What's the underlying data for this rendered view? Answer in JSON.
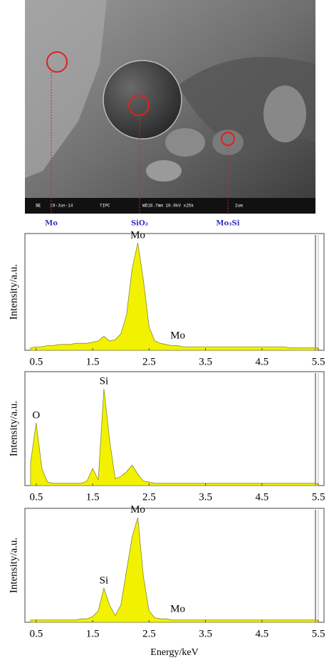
{
  "image": {
    "labels": [
      "Mo",
      "SiO₂",
      "Mo₃Si"
    ],
    "info": [
      "SE",
      "19-Jun-14",
      "TIPC",
      "WD18.7mm 10.0kV x25k",
      "2um"
    ]
  },
  "chart_data": [
    {
      "type": "area",
      "ylabel": "Intensity/a.u.",
      "color": "#f2f200",
      "x": [
        0.4,
        0.5,
        0.6,
        0.7,
        0.8,
        0.9,
        1.0,
        1.1,
        1.2,
        1.3,
        1.4,
        1.5,
        1.6,
        1.7,
        1.8,
        1.9,
        2.0,
        2.1,
        2.2,
        2.3,
        2.4,
        2.5,
        2.6,
        2.7,
        2.8,
        2.9,
        3.0,
        3.1,
        3.2,
        3.3,
        3.4,
        3.5,
        3.6,
        3.7,
        3.8,
        3.9,
        4.0,
        4.1,
        4.2,
        4.3,
        4.4,
        4.5,
        4.6,
        4.7,
        4.8,
        4.9,
        5.0,
        5.1,
        5.2,
        5.3,
        5.4,
        5.5
      ],
      "values": [
        2,
        3,
        3,
        4,
        4,
        5,
        5,
        5,
        6,
        6,
        6,
        7,
        8,
        12,
        8,
        9,
        14,
        30,
        70,
        92,
        60,
        20,
        8,
        6,
        5,
        4,
        4,
        3,
        3,
        3,
        3,
        3,
        3,
        3,
        3,
        3,
        3,
        3,
        3,
        3,
        3,
        3,
        3,
        3,
        3,
        3,
        2,
        2,
        2,
        2,
        2,
        2
      ],
      "annotations": [
        {
          "text": "Mo",
          "x": 2.3,
          "y": 92
        },
        {
          "text": "Mo",
          "x": 2.75,
          "y": 6
        }
      ],
      "xlim": [
        0.3,
        5.6
      ],
      "ylim": [
        0,
        100
      ],
      "xticks": [
        0.5,
        1.5,
        2.5,
        3.5,
        4.5,
        5.5
      ]
    },
    {
      "type": "area",
      "ylabel": "Intensity/a.u.",
      "color": "#f2f200",
      "x": [
        0.4,
        0.5,
        0.6,
        0.7,
        0.8,
        0.9,
        1.0,
        1.1,
        1.2,
        1.3,
        1.4,
        1.5,
        1.6,
        1.7,
        1.8,
        1.9,
        2.0,
        2.1,
        2.2,
        2.3,
        2.4,
        2.5,
        2.6,
        2.7,
        2.8,
        2.9,
        3.0,
        3.1,
        3.2,
        3.3,
        3.4,
        3.5,
        3.6,
        3.7,
        3.8,
        3.9,
        4.0,
        4.1,
        4.2,
        4.3,
        4.4,
        4.5,
        4.6,
        4.7,
        4.8,
        4.9,
        5.0,
        5.1,
        5.2,
        5.3,
        5.4,
        5.5
      ],
      "values": [
        20,
        55,
        15,
        3,
        2,
        2,
        2,
        2,
        2,
        2,
        4,
        15,
        5,
        85,
        40,
        6,
        8,
        12,
        18,
        10,
        4,
        3,
        2,
        2,
        2,
        2,
        2,
        2,
        2,
        2,
        2,
        2,
        2,
        2,
        2,
        2,
        2,
        2,
        2,
        2,
        2,
        2,
        2,
        2,
        2,
        2,
        2,
        2,
        2,
        2,
        2,
        2
      ],
      "annotations": [
        {
          "text": "O",
          "x": 0.5,
          "y": 55
        },
        {
          "text": "Si",
          "x": 1.7,
          "y": 85
        }
      ],
      "xlim": [
        0.3,
        5.6
      ],
      "ylim": [
        0,
        100
      ],
      "xticks": [
        0.5,
        1.5,
        2.5,
        3.5,
        4.5,
        5.5
      ]
    },
    {
      "type": "area",
      "ylabel": "Intensity/a.u.",
      "xlabel": "Energy/keV",
      "color": "#f2f200",
      "x": [
        0.4,
        0.5,
        0.6,
        0.7,
        0.8,
        0.9,
        1.0,
        1.1,
        1.2,
        1.3,
        1.4,
        1.5,
        1.6,
        1.7,
        1.8,
        1.9,
        2.0,
        2.1,
        2.2,
        2.3,
        2.4,
        2.5,
        2.6,
        2.7,
        2.8,
        2.9,
        3.0,
        3.1,
        3.2,
        3.3,
        3.4,
        3.5,
        3.6,
        3.7,
        3.8,
        3.9,
        4.0,
        4.1,
        4.2,
        4.3,
        4.4,
        4.5,
        4.6,
        4.7,
        4.8,
        4.9,
        5.0,
        5.1,
        5.2,
        5.3,
        5.4,
        5.5
      ],
      "values": [
        2,
        2,
        2,
        2,
        2,
        2,
        2,
        2,
        2,
        3,
        3,
        5,
        10,
        30,
        15,
        6,
        15,
        45,
        75,
        92,
        40,
        10,
        4,
        3,
        3,
        2,
        2,
        2,
        2,
        2,
        2,
        2,
        2,
        2,
        2,
        2,
        2,
        2,
        2,
        2,
        2,
        2,
        2,
        2,
        2,
        2,
        2,
        2,
        2,
        2,
        2,
        2
      ],
      "annotations": [
        {
          "text": "Mo",
          "x": 2.3,
          "y": 92
        },
        {
          "text": "Si",
          "x": 1.7,
          "y": 30
        },
        {
          "text": "Mo",
          "x": 2.75,
          "y": 5
        }
      ],
      "xlim": [
        0.3,
        5.6
      ],
      "ylim": [
        0,
        100
      ],
      "xticks": [
        0.5,
        1.5,
        2.5,
        3.5,
        4.5,
        5.5
      ]
    }
  ]
}
